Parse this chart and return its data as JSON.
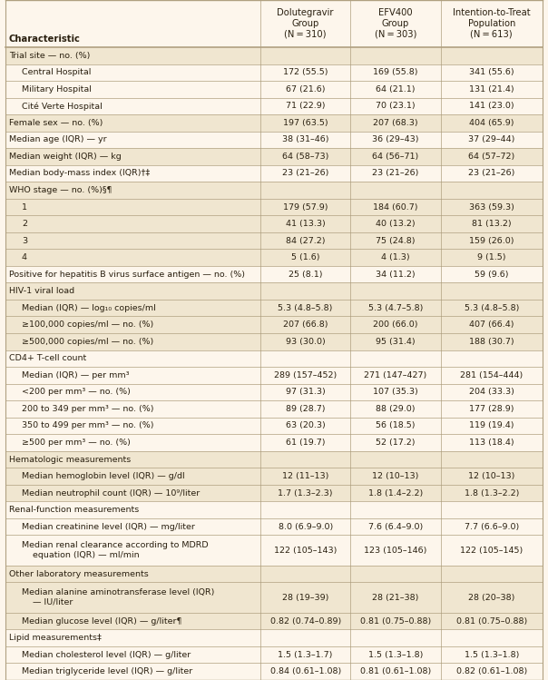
{
  "col_headers": [
    "Characteristic",
    "Dolutegravir\nGroup\n(N = 310)",
    "EFV400\nGroup\n(N = 303)",
    "Intention-to-Treat\nPopulation\n(N = 613)"
  ],
  "rows": [
    {
      "label": "Trial site — no. (%)",
      "vals": [
        "",
        "",
        ""
      ],
      "indent": 0,
      "shaded": true,
      "multiline": false
    },
    {
      "label": "Central Hospital",
      "vals": [
        "172 (55.5)",
        "169 (55.8)",
        "341 (55.6)"
      ],
      "indent": 1,
      "shaded": false,
      "multiline": false
    },
    {
      "label": "Military Hospital",
      "vals": [
        "67 (21.6)",
        "64 (21.1)",
        "131 (21.4)"
      ],
      "indent": 1,
      "shaded": false,
      "multiline": false
    },
    {
      "label": "Cité Verte Hospital",
      "vals": [
        "71 (22.9)",
        "70 (23.1)",
        "141 (23.0)"
      ],
      "indent": 1,
      "shaded": false,
      "multiline": false
    },
    {
      "label": "Female sex — no. (%)",
      "vals": [
        "197 (63.5)",
        "207 (68.3)",
        "404 (65.9)"
      ],
      "indent": 0,
      "shaded": true,
      "multiline": false
    },
    {
      "label": "Median age (IQR) — yr",
      "vals": [
        "38 (31–46)",
        "36 (29–43)",
        "37 (29–44)"
      ],
      "indent": 0,
      "shaded": false,
      "multiline": false
    },
    {
      "label": "Median weight (IQR) — kg",
      "vals": [
        "64 (58–73)",
        "64 (56–71)",
        "64 (57–72)"
      ],
      "indent": 0,
      "shaded": true,
      "multiline": false
    },
    {
      "label": "Median body-mass index (IQR)†‡",
      "vals": [
        "23 (21–26)",
        "23 (21–26)",
        "23 (21–26)"
      ],
      "indent": 0,
      "shaded": false,
      "multiline": false
    },
    {
      "label": "WHO stage — no. (%)§¶",
      "vals": [
        "",
        "",
        ""
      ],
      "indent": 0,
      "shaded": true,
      "multiline": false
    },
    {
      "label": "1",
      "vals": [
        "179 (57.9)",
        "184 (60.7)",
        "363 (59.3)"
      ],
      "indent": 1,
      "shaded": true,
      "multiline": false
    },
    {
      "label": "2",
      "vals": [
        "41 (13.3)",
        "40 (13.2)",
        "81 (13.2)"
      ],
      "indent": 1,
      "shaded": true,
      "multiline": false
    },
    {
      "label": "3",
      "vals": [
        "84 (27.2)",
        "75 (24.8)",
        "159 (26.0)"
      ],
      "indent": 1,
      "shaded": true,
      "multiline": false
    },
    {
      "label": "4",
      "vals": [
        "5 (1.6)",
        "4 (1.3)",
        "9 (1.5)"
      ],
      "indent": 1,
      "shaded": true,
      "multiline": false
    },
    {
      "label": "Positive for hepatitis B virus surface antigen — no. (%)",
      "vals": [
        "25 (8.1)",
        "34 (11.2)",
        "59 (9.6)"
      ],
      "indent": 0,
      "shaded": false,
      "multiline": false
    },
    {
      "label": "HIV-1 viral load",
      "vals": [
        "",
        "",
        ""
      ],
      "indent": 0,
      "shaded": true,
      "multiline": false
    },
    {
      "label": "Median (IQR) — log₁₀ copies/ml",
      "vals": [
        "5.3 (4.8–5.8)",
        "5.3 (4.7–5.8)",
        "5.3 (4.8–5.8)"
      ],
      "indent": 1,
      "shaded": true,
      "multiline": false
    },
    {
      "label": "≥100,000 copies/ml — no. (%)",
      "vals": [
        "207 (66.8)",
        "200 (66.0)",
        "407 (66.4)"
      ],
      "indent": 1,
      "shaded": true,
      "multiline": false
    },
    {
      "label": "≥500,000 copies/ml — no. (%)",
      "vals": [
        "93 (30.0)",
        "95 (31.4)",
        "188 (30.7)"
      ],
      "indent": 1,
      "shaded": true,
      "multiline": false
    },
    {
      "label": "CD4+ T-cell count",
      "vals": [
        "",
        "",
        ""
      ],
      "indent": 0,
      "shaded": false,
      "multiline": false
    },
    {
      "label": "Median (IQR) — per mm³",
      "vals": [
        "289 (157–452)",
        "271 (147–427)",
        "281 (154–444)"
      ],
      "indent": 1,
      "shaded": false,
      "multiline": false
    },
    {
      "label": "<200 per mm³ — no. (%)",
      "vals": [
        "97 (31.3)",
        "107 (35.3)",
        "204 (33.3)"
      ],
      "indent": 1,
      "shaded": false,
      "multiline": false
    },
    {
      "label": "200 to 349 per mm³ — no. (%)",
      "vals": [
        "89 (28.7)",
        "88 (29.0)",
        "177 (28.9)"
      ],
      "indent": 1,
      "shaded": false,
      "multiline": false
    },
    {
      "label": "350 to 499 per mm³ — no. (%)",
      "vals": [
        "63 (20.3)",
        "56 (18.5)",
        "119 (19.4)"
      ],
      "indent": 1,
      "shaded": false,
      "multiline": false
    },
    {
      "label": "≥500 per mm³ — no. (%)",
      "vals": [
        "61 (19.7)",
        "52 (17.2)",
        "113 (18.4)"
      ],
      "indent": 1,
      "shaded": false,
      "multiline": false
    },
    {
      "label": "Hematologic measurements",
      "vals": [
        "",
        "",
        ""
      ],
      "indent": 0,
      "shaded": true,
      "multiline": false
    },
    {
      "label": "Median hemoglobin level (IQR) — g/dl",
      "vals": [
        "12 (11–13)",
        "12 (10–13)",
        "12 (10–13)"
      ],
      "indent": 1,
      "shaded": true,
      "multiline": false
    },
    {
      "label": "Median neutrophil count (IQR) — 10⁹/liter",
      "vals": [
        "1.7 (1.3–2.3)",
        "1.8 (1.4–2.2)",
        "1.8 (1.3–2.2)"
      ],
      "indent": 1,
      "shaded": true,
      "multiline": false
    },
    {
      "label": "Renal-function measurements",
      "vals": [
        "",
        "",
        ""
      ],
      "indent": 0,
      "shaded": false,
      "multiline": false
    },
    {
      "label": "Median creatinine level (IQR) — mg/liter",
      "vals": [
        "8.0 (6.9–9.0)",
        "7.6 (6.4–9.0)",
        "7.7 (6.6–9.0)"
      ],
      "indent": 1,
      "shaded": false,
      "multiline": false
    },
    {
      "label": "Median renal clearance according to MDRD\n    equation (IQR) — ml/min",
      "vals": [
        "122 (105–143)",
        "123 (105–146)",
        "122 (105–145)"
      ],
      "indent": 1,
      "shaded": false,
      "multiline": true
    },
    {
      "label": "Other laboratory measurements",
      "vals": [
        "",
        "",
        ""
      ],
      "indent": 0,
      "shaded": true,
      "multiline": false
    },
    {
      "label": "Median alanine aminotransferase level (IQR)\n    — IU/liter",
      "vals": [
        "28 (19–39)",
        "28 (21–38)",
        "28 (20–38)"
      ],
      "indent": 1,
      "shaded": true,
      "multiline": true
    },
    {
      "label": "Median glucose level (IQR) — g/liter¶",
      "vals": [
        "0.82 (0.74–0.89)",
        "0.81 (0.75–0.88)",
        "0.81 (0.75–0.88)"
      ],
      "indent": 1,
      "shaded": true,
      "multiline": false
    },
    {
      "label": "Lipid measurements‡",
      "vals": [
        "",
        "",
        ""
      ],
      "indent": 0,
      "shaded": false,
      "multiline": false
    },
    {
      "label": "Median cholesterol level (IQR) — g/liter",
      "vals": [
        "1.5 (1.3–1.7)",
        "1.5 (1.3–1.8)",
        "1.5 (1.3–1.8)"
      ],
      "indent": 1,
      "shaded": false,
      "multiline": false
    },
    {
      "label": "Median triglyceride level (IQR) — g/liter",
      "vals": [
        "0.84 (0.61–1.08)",
        "0.81 (0.61–1.08)",
        "0.82 (0.61–1.08)"
      ],
      "indent": 1,
      "shaded": false,
      "multiline": false
    }
  ],
  "bg_color": "#fdf6ec",
  "shaded_color": "#f0e6d0",
  "header_bg": "#fdf6ec",
  "text_color": "#2a2010",
  "border_color": "#b0a080",
  "font_size": 6.8,
  "header_font_size": 7.2,
  "col_split": 0.475,
  "col2_split": 0.642,
  "col3_split": 0.81
}
